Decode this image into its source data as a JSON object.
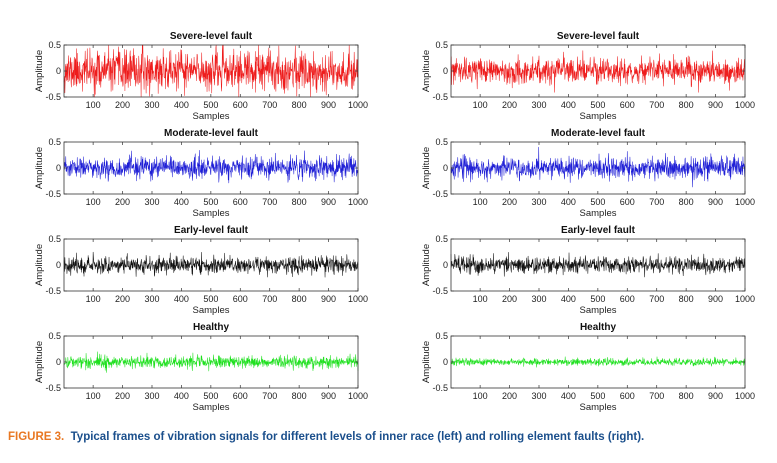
{
  "figure": {
    "label": "FIGURE 3.",
    "caption": "Typical frames of vibration signals for different levels of inner race (left) and rolling element faults (right)."
  },
  "colors": {
    "severe": "#ee1c1c",
    "moderate": "#1f1fd6",
    "early": "#111111",
    "healthy": "#1fe01f",
    "caption_text": "#1b4f8c",
    "figure_label": "#e87722"
  },
  "chart_data": [
    {
      "type": "line",
      "column": "left",
      "title": "Severe-level fault",
      "xlabel": "Samples",
      "ylabel": "Amplitude",
      "xlim": [
        1,
        1000
      ],
      "ylim": [
        -0.5,
        0.5
      ],
      "xticks": [
        100,
        200,
        300,
        400,
        500,
        600,
        700,
        800,
        900,
        1000
      ],
      "yticks": [
        -0.5,
        0,
        0.5
      ],
      "color_key": "severe",
      "n_samples": 1000,
      "signal_std": 0.19,
      "signal_clip": 0.5,
      "seed": 11
    },
    {
      "type": "line",
      "column": "left",
      "title": "Moderate-level fault",
      "xlabel": "Samples",
      "ylabel": "Amplitude",
      "xlim": [
        1,
        1000
      ],
      "ylim": [
        -0.5,
        0.5
      ],
      "xticks": [
        100,
        200,
        300,
        400,
        500,
        600,
        700,
        800,
        900,
        1000
      ],
      "yticks": [
        -0.5,
        0,
        0.5
      ],
      "color_key": "moderate",
      "n_samples": 1000,
      "signal_std": 0.1,
      "signal_clip": 0.5,
      "seed": 23
    },
    {
      "type": "line",
      "column": "left",
      "title": "Early-level fault",
      "xlabel": "Samples",
      "ylabel": "Amplitude",
      "xlim": [
        1,
        1000
      ],
      "ylim": [
        -0.5,
        0.5
      ],
      "xticks": [
        100,
        200,
        300,
        400,
        500,
        600,
        700,
        800,
        900,
        1000
      ],
      "yticks": [
        -0.5,
        0,
        0.5
      ],
      "color_key": "early",
      "n_samples": 1000,
      "signal_std": 0.08,
      "signal_clip": 0.4,
      "seed": 37
    },
    {
      "type": "line",
      "column": "left",
      "title": "Healthy",
      "xlabel": "Samples",
      "ylabel": "Amplitude",
      "xlim": [
        1,
        1000
      ],
      "ylim": [
        -0.5,
        0.5
      ],
      "xticks": [
        100,
        200,
        300,
        400,
        500,
        600,
        700,
        800,
        900,
        1000
      ],
      "yticks": [
        -0.5,
        0,
        0.5
      ],
      "color_key": "healthy",
      "n_samples": 1000,
      "signal_std": 0.06,
      "signal_clip": 0.25,
      "seed": 41
    },
    {
      "type": "line",
      "column": "right",
      "title": "Severe-level fault",
      "xlabel": "Samples",
      "ylabel": "Amplitude",
      "xlim": [
        1,
        1000
      ],
      "ylim": [
        -0.5,
        0.5
      ],
      "xticks": [
        100,
        200,
        300,
        400,
        500,
        600,
        700,
        800,
        900,
        1000
      ],
      "yticks": [
        -0.5,
        0,
        0.5
      ],
      "color_key": "severe",
      "n_samples": 1000,
      "signal_std": 0.12,
      "signal_clip": 0.5,
      "seed": 53
    },
    {
      "type": "line",
      "column": "right",
      "title": "Moderate-level fault",
      "xlabel": "Samples",
      "ylabel": "Amplitude",
      "xlim": [
        1,
        1000
      ],
      "ylim": [
        -0.5,
        0.5
      ],
      "xticks": [
        100,
        200,
        300,
        400,
        500,
        600,
        700,
        800,
        900,
        1000
      ],
      "yticks": [
        -0.5,
        0,
        0.5
      ],
      "color_key": "moderate",
      "n_samples": 1000,
      "signal_std": 0.1,
      "signal_clip": 0.4,
      "seed": 67
    },
    {
      "type": "line",
      "column": "right",
      "title": "Early-level fault",
      "xlabel": "Samples",
      "ylabel": "Amplitude",
      "xlim": [
        1,
        1000
      ],
      "ylim": [
        -0.5,
        0.5
      ],
      "xticks": [
        100,
        200,
        300,
        400,
        500,
        600,
        700,
        800,
        900,
        1000
      ],
      "yticks": [
        -0.5,
        0,
        0.5
      ],
      "color_key": "early",
      "n_samples": 1000,
      "signal_std": 0.08,
      "signal_clip": 0.3,
      "seed": 79
    },
    {
      "type": "line",
      "column": "right",
      "title": "Healthy",
      "xlabel": "Samples",
      "ylabel": "Amplitude",
      "xlim": [
        1,
        1000
      ],
      "ylim": [
        -0.5,
        0.5
      ],
      "xticks": [
        100,
        200,
        300,
        400,
        500,
        600,
        700,
        800,
        900,
        1000
      ],
      "yticks": [
        -0.5,
        0,
        0.5
      ],
      "color_key": "healthy",
      "n_samples": 1000,
      "signal_std": 0.035,
      "signal_clip": 0.15,
      "seed": 83
    }
  ]
}
